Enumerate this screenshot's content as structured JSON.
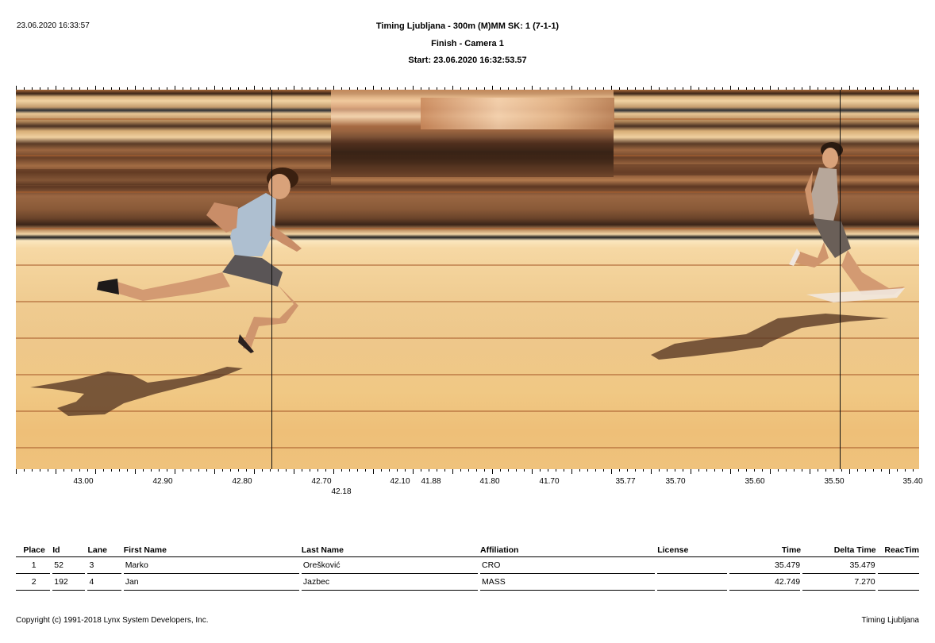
{
  "header": {
    "datetime": "23.06.2020 16:33:57",
    "title": "Timing Ljubljana - 300m (M)MM   SK: 1 (7-1-1)",
    "camera": "Finish - Camera 1",
    "start": "Start: 23.06.2020 16:32:53.57"
  },
  "timeline": {
    "ticks": [
      "43.00",
      "42.90",
      "42.80",
      "42.70",
      "42.10",
      "41.88",
      "41.80",
      "41.70",
      "35.77",
      "35.70",
      "35.60",
      "35.50",
      "35.40"
    ],
    "sub_tick": "42.18"
  },
  "results": {
    "columns": [
      "Place",
      "Id",
      "Lane",
      "First Name",
      "Last Name",
      "Affiliation",
      "License",
      "Time",
      "Delta Time",
      "ReacTim"
    ],
    "rows": [
      {
        "place": "1",
        "id": "52",
        "lane": "3",
        "first": "Marko",
        "last": "Orešković",
        "affiliation": "CRO",
        "license": "",
        "time": "35.479",
        "delta": "35.479",
        "react": ""
      },
      {
        "place": "2",
        "id": "192",
        "lane": "4",
        "first": "Jan",
        "last": "Jazbec",
        "affiliation": "MASS",
        "license": "",
        "time": "42.749",
        "delta": "7.270",
        "react": ""
      }
    ]
  },
  "footer": {
    "copyright": "Copyright (c) 1991-2018 Lynx System Developers, Inc.",
    "company": "Timing Ljubljana"
  }
}
